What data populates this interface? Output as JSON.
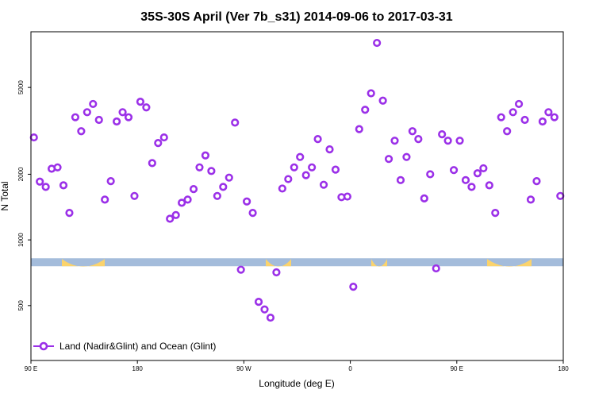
{
  "chart_data": {
    "type": "scatter",
    "title": "35S-30S April (Ver 7b_s31)   2014-09-06 to 2017-03-31",
    "xlabel": "Longitude (deg E)",
    "ylabel": "N Total",
    "x_axis_span": [
      0,
      450
    ],
    "y_scale": "log",
    "ylim": [
      280,
      9000
    ],
    "x_ticks": [
      {
        "pos": 0,
        "label": "90 E"
      },
      {
        "pos": 90,
        "label": "180"
      },
      {
        "pos": 180,
        "label": "90 W"
      },
      {
        "pos": 270,
        "label": "0"
      },
      {
        "pos": 360,
        "label": "90 E"
      },
      {
        "pos": 450,
        "label": "180"
      }
    ],
    "y_ticks": [
      {
        "value": 500,
        "label": "500"
      },
      {
        "value": 1000,
        "label": "1000"
      },
      {
        "value": 2000,
        "label": "2000"
      },
      {
        "value": 5000,
        "label": "5000"
      }
    ],
    "grid": false,
    "legend_position": "bottom-left",
    "series": [
      {
        "name": "Land (Nadir&Glint) and Ocean (Glint)",
        "color": "#9b30e8",
        "x": [
          2.5,
          7.5,
          12.5,
          17.5,
          22.5,
          27.5,
          32.5,
          37.5,
          42.5,
          47.5,
          52.5,
          57.5,
          62.5,
          67.5,
          72.5,
          77.5,
          82.5,
          87.5,
          92.5,
          97.5,
          102.5,
          107.5,
          112.5,
          117.5,
          122.5,
          127.5,
          132.5,
          137.5,
          142.5,
          147.5,
          152.5,
          157.5,
          162.5,
          167.5,
          172.5,
          177.5,
          182.5,
          187.5,
          192.5,
          197.5,
          202.5,
          207.5,
          212.5,
          217.5,
          222.5,
          227.5,
          232.5,
          237.5,
          242.5,
          247.5,
          252.5,
          257.5,
          262.5,
          267.5,
          272.5,
          277.5,
          282.5,
          287.5,
          292.5,
          297.5,
          302.5,
          307.5,
          312.5,
          317.5,
          322.5,
          327.5,
          332.5,
          337.5,
          342.5,
          347.5,
          352.5,
          357.5,
          362.5,
          367.5,
          372.5,
          377.5,
          382.5,
          387.5,
          392.5,
          397.5,
          402.5,
          407.5,
          412.5,
          417.5,
          422.5,
          427.5,
          432.5,
          437.5,
          442.5,
          447.5
        ],
        "y": [
          2950,
          1850,
          1750,
          2120,
          2150,
          1780,
          1330,
          3650,
          3150,
          3850,
          4200,
          3550,
          1530,
          1860,
          3490,
          3850,
          3650,
          1590,
          4300,
          4050,
          2250,
          2780,
          2950,
          1250,
          1300,
          1480,
          1530,
          1710,
          2150,
          2440,
          2070,
          1590,
          1750,
          1930,
          3450,
          730,
          1500,
          1330,
          520,
          480,
          440,
          710,
          1720,
          1900,
          2150,
          2400,
          1980,
          2150,
          2900,
          1790,
          2600,
          2100,
          1570,
          1580,
          610,
          3220,
          3950,
          4700,
          8000,
          4350,
          2350,
          2850,
          1880,
          2400,
          3150,
          2900,
          1550,
          2000,
          740,
          3050,
          2850,
          2090,
          2850,
          1880,
          1750,
          2020,
          2130,
          1780,
          1330,
          3650,
          3150,
          3850,
          4200,
          3550,
          1530,
          1860,
          3490,
          3850,
          3650,
          1590
        ]
      }
    ],
    "background_strip": {
      "y_value": 790,
      "ocean_color": "#a4bcdb",
      "land_color": "#fbd36c"
    }
  }
}
